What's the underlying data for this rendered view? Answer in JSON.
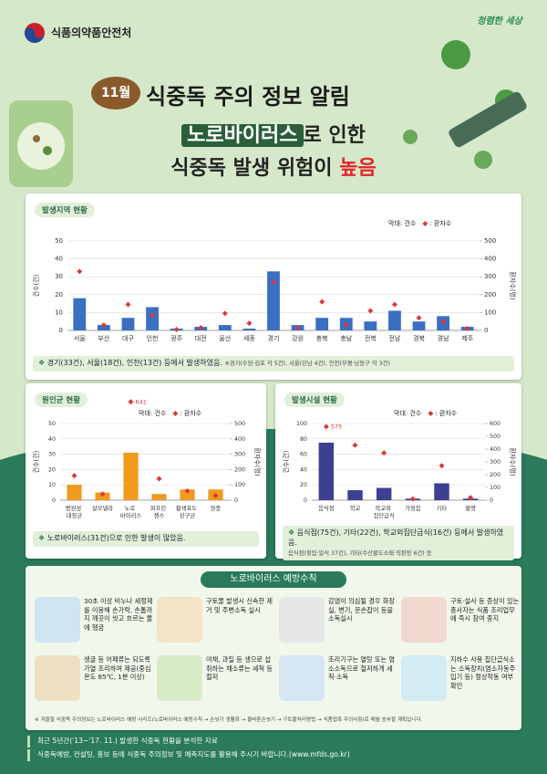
{
  "header": {
    "agency": "식품의약품안전처",
    "slogan": "청렴한 세상",
    "month": "11월",
    "title": "식중독 주의 정보 알림",
    "highlight": "노로바이러스",
    "highlight_rest": "로 인한",
    "line2": "식중독 발생 위험이",
    "emphasis": "높음"
  },
  "chart_data": [
    {
      "type": "bar",
      "title": "발생지역 현황",
      "categories": [
        "서울",
        "부산",
        "대구",
        "인천",
        "광주",
        "대전",
        "울산",
        "세종",
        "경기",
        "강원",
        "충북",
        "충남",
        "전북",
        "전남",
        "경북",
        "경남",
        "제주"
      ],
      "series": [
        {
          "name": "막대: 건수",
          "type": "bar",
          "color": "#3a6fc2",
          "values": [
            18,
            3,
            7,
            13,
            1,
            2,
            3,
            1,
            33,
            3,
            7,
            7,
            5,
            11,
            5,
            8,
            2
          ]
        },
        {
          "name": ": 환자수",
          "type": "scatter",
          "axis": "y2",
          "color": "#d93a3a",
          "values": [
            330,
            30,
            145,
            85,
            5,
            15,
            95,
            40,
            270,
            15,
            160,
            30,
            110,
            145,
            70,
            50,
            10
          ]
        }
      ],
      "ylim": [
        0,
        50
      ],
      "yticks": [
        0,
        10,
        20,
        30,
        40,
        50
      ],
      "y2lim": [
        0,
        500
      ],
      "y2ticks": [
        0,
        100,
        200,
        300,
        400,
        500
      ],
      "ylabel": "건수(건)",
      "y2label": "환자수(명)",
      "grid": true,
      "note": "경기(33건), 서울(18건), 인천(13건) 등에서 발생하였음.",
      "note_detail": "※경기(수원·김포 각 5건), 서울(강남 4건), 인천(부평·남동구 각 3건)"
    },
    {
      "type": "bar",
      "title": "원인균 현황",
      "categories": [
        "병원성 대장균",
        "살모넬라",
        "노로 바이러스",
        "퍼프린 젠스",
        "황색포도 상구균",
        "원충"
      ],
      "series": [
        {
          "name": "막대: 건수",
          "type": "bar",
          "color": "#f09a1e",
          "values": [
            10,
            5,
            31,
            4,
            7,
            7
          ]
        },
        {
          "name": ": 환자수",
          "type": "scatter",
          "axis": "y2",
          "color": "#d93a3a",
          "values": [
            160,
            40,
            641,
            140,
            60,
            30
          ],
          "value_labels": [
            null,
            null,
            "641",
            null,
            null,
            null
          ]
        }
      ],
      "ylim": [
        0,
        50
      ],
      "yticks": [
        0,
        10,
        20,
        30,
        40,
        50
      ],
      "y2lim": [
        0,
        500
      ],
      "y2ticks": [
        0,
        100,
        200,
        300,
        400,
        500
      ],
      "ylabel": "건수(건)",
      "y2label": "환자수(명)",
      "grid": true,
      "note": "노로바이러스(31건)으로 인한 발생이 많았음."
    },
    {
      "type": "bar",
      "title": "발생시설 현황",
      "categories": [
        "음식점",
        "학교",
        "학교외 집단급식",
        "가정집",
        "기타",
        "불명"
      ],
      "series": [
        {
          "name": "막대: 건수",
          "type": "bar",
          "color": "#3d3f92",
          "values": [
            75,
            13,
            16,
            2,
            22,
            2
          ]
        },
        {
          "name": ": 환자수",
          "type": "scatter",
          "axis": "y2",
          "color": "#d93a3a",
          "values": [
            575,
            430,
            370,
            10,
            270,
            20
          ],
          "value_labels": [
            "575",
            null,
            null,
            null,
            null,
            null
          ]
        }
      ],
      "ylim": [
        0,
        100
      ],
      "yticks": [
        0,
        20,
        40,
        60,
        80,
        100
      ],
      "y2lim": [
        0,
        600
      ],
      "y2ticks": [
        0,
        100,
        200,
        300,
        400,
        500,
        600
      ],
      "ylabel": "건수(건)",
      "y2label": "환자수(명)",
      "grid": true,
      "note": "음식점(75건), 기타(22건), 학교외집단급식(16건) 등에서 발생하였음.",
      "note_detail": "음식점(횟집·일식 37건), 기타(수산물도소매·직판장 6건) 등"
    }
  ],
  "prevention": {
    "title": "노로바이러스 예방수칙",
    "items": [
      "30초 이상 비누나 세정제를 이용해 손가락, 손톱까지 깨끗이 씻고 흐르는 물에 헹굼",
      "구토물 발생시 신속한 제거 및 주변소독 실시",
      "감염이 의심될 경우 화장실, 변기, 문손잡이 등을 소독실시",
      "구토·설사 등 증상이 있는 종사자는 식품 조리업무에 즉시 참여 중지",
      "생굴 등 어패류는 되도록 가열 조리하여 제공(중심온도 85℃, 1분 이상)",
      "야채, 과일 등 생으로 섭취하는 채소류는 세척 등 철저",
      "조리기구는 열탕 또는 염소소독으로 철저하게 세척·소독",
      "지하수 사용 집단급식소는 소독장치(염소자동주입기 등) 정상작동 여부 확인"
    ],
    "footnote": "※ 겨울철 식중독 주의정보는 노로바이러스 예방 시리즈(노로바이러스 예방수칙 → 손씻기 생활화 → 올바른손씻기 → 구토물처리방법 → 식품접촉 주의사항)로 매월 송부할 계획입니다."
  },
  "footer": {
    "notes": [
      "최근 5년간('13~'17. 11.) 발생한 식중독 현황을 분석한 자료",
      "식중독예방, 컨설팅, 홍보 등에 식중독 주의정보 및 예측지도를 활용해 주시기 바랍니다.(www.mfds.go.kr)"
    ]
  }
}
